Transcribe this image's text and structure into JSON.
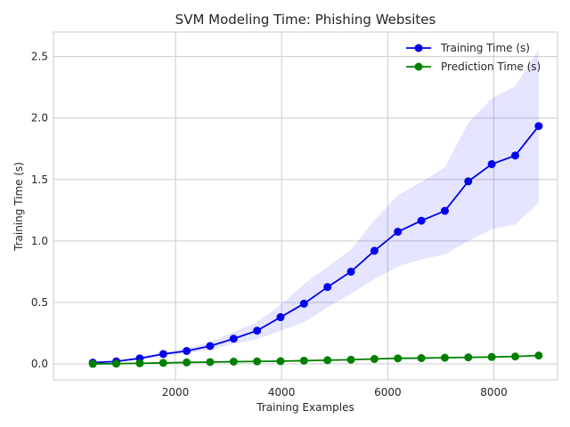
{
  "chart_data": {
    "type": "line",
    "title": "SVM Modeling Time: Phishing Websites",
    "xlabel": "Training Examples",
    "ylabel": "Training Time (s)",
    "xlim": [
      -300,
      9200
    ],
    "ylim": [
      -0.13,
      2.7
    ],
    "xticks": [
      2000,
      4000,
      6000,
      8000
    ],
    "yticks": [
      0.0,
      0.5,
      1.0,
      1.5,
      2.0,
      2.5
    ],
    "xtick_labels": [
      "2000",
      "4000",
      "6000",
      "8000"
    ],
    "ytick_labels": [
      "0.0",
      "0.5",
      "1.0",
      "1.5",
      "2.0",
      "2.5"
    ],
    "grid": true,
    "legend_position": "top-right",
    "x": [
      442,
      884,
      1327,
      1769,
      2211,
      2653,
      3096,
      3538,
      3980,
      4422,
      4865,
      5307,
      5749,
      6191,
      6634,
      7076,
      7518,
      7960,
      8403,
      8845
    ],
    "series": [
      {
        "name": "Training Time (s)",
        "color": "#0000ee",
        "values": [
          0.01,
          0.02,
          0.045,
          0.08,
          0.105,
          0.145,
          0.205,
          0.27,
          0.38,
          0.49,
          0.625,
          0.75,
          0.92,
          1.075,
          1.165,
          1.245,
          1.485,
          1.625,
          1.695,
          1.935
        ],
        "band_lower": [
          0.008,
          0.016,
          0.036,
          0.065,
          0.085,
          0.115,
          0.16,
          0.2,
          0.27,
          0.34,
          0.46,
          0.57,
          0.69,
          0.79,
          0.85,
          0.89,
          1.0,
          1.095,
          1.135,
          1.31
        ],
        "band_upper": [
          0.012,
          0.024,
          0.054,
          0.095,
          0.125,
          0.18,
          0.26,
          0.34,
          0.48,
          0.65,
          0.79,
          0.93,
          1.17,
          1.37,
          1.48,
          1.6,
          1.96,
          2.16,
          2.26,
          2.56
        ],
        "band_color": "#0000ff"
      },
      {
        "name": "Prediction Time (s)",
        "color": "#008000",
        "values": [
          0.0,
          0.002,
          0.005,
          0.008,
          0.012,
          0.015,
          0.018,
          0.02,
          0.022,
          0.026,
          0.03,
          0.034,
          0.04,
          0.045,
          0.047,
          0.05,
          0.053,
          0.056,
          0.06,
          0.068
        ]
      }
    ]
  }
}
